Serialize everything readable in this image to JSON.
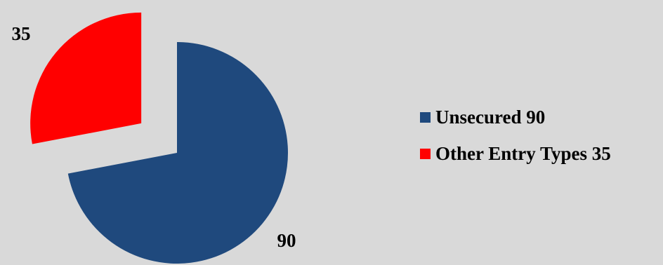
{
  "chart_data": {
    "type": "pie",
    "title": "",
    "categories": [
      "Unsecured",
      "Other Entry Types"
    ],
    "values": [
      90,
      35
    ],
    "data_labels": [
      "90",
      "35"
    ],
    "colors": [
      "#1f497d",
      "#ff0000"
    ],
    "exploded": [
      false,
      true
    ],
    "legend": {
      "placement": "right",
      "entries": [
        "Unsecured 90",
        "Other Entry Types 35"
      ]
    },
    "background": "#d9d9d9"
  }
}
